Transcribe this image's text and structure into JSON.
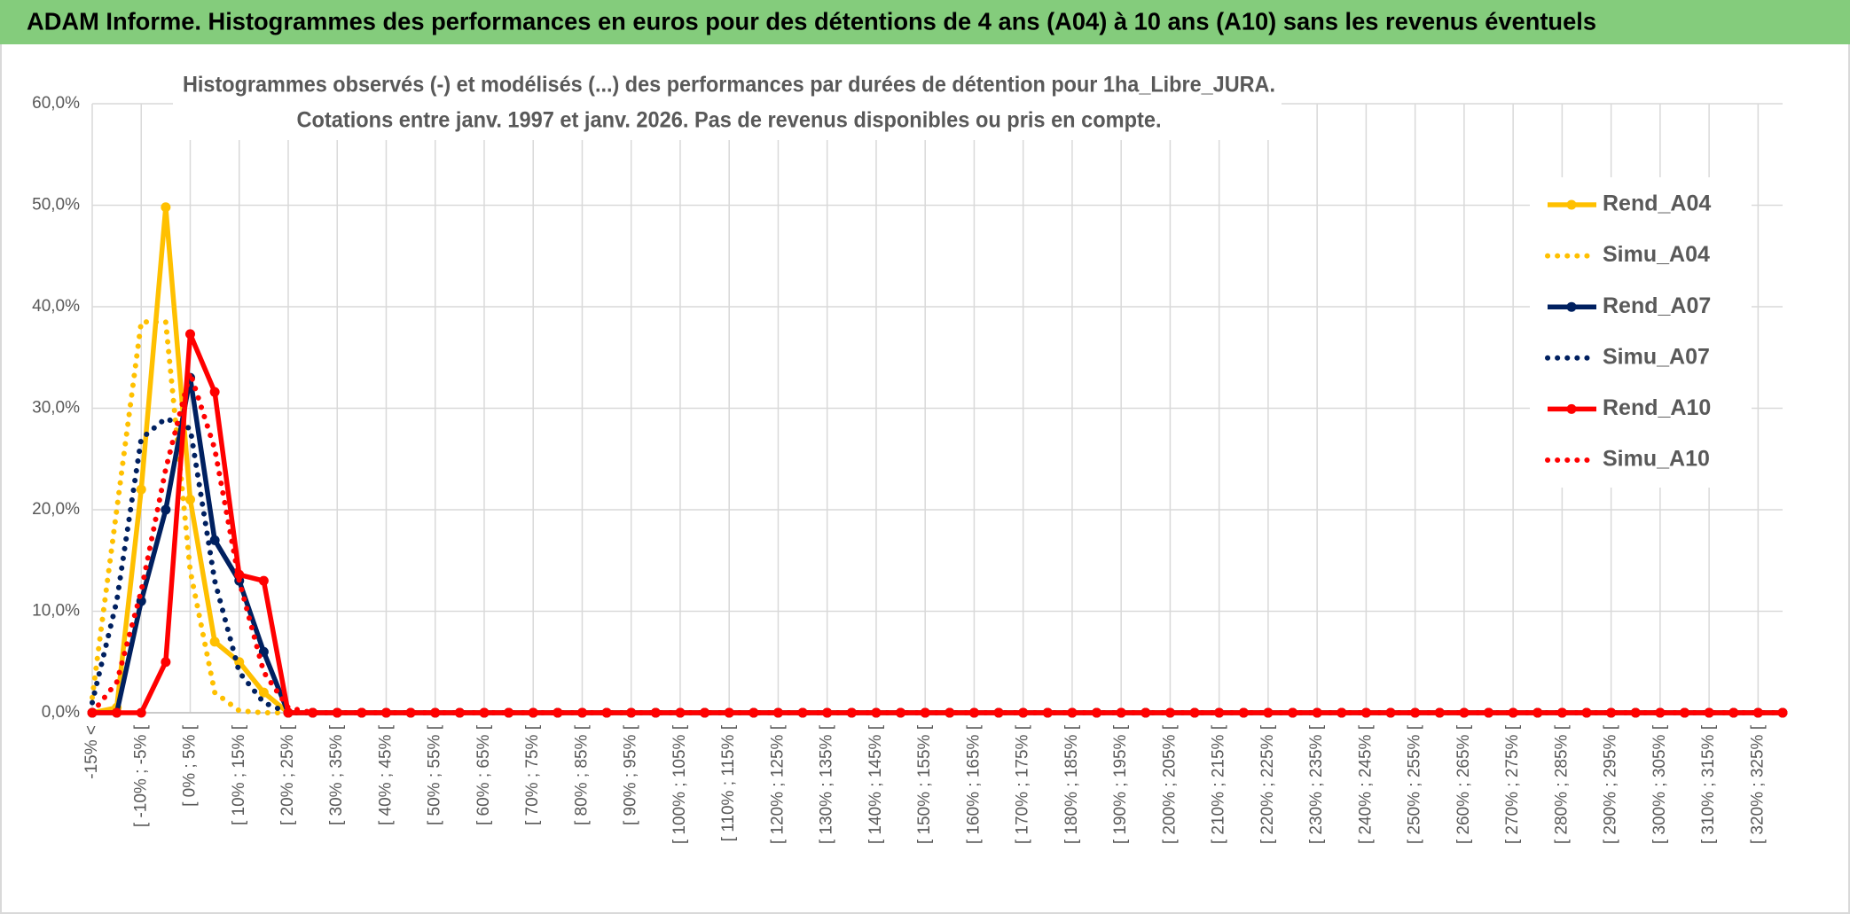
{
  "header": {
    "title": "ADAM Informe. Histogrammes des performances en euros pour des détentions de 4 ans (A04) à 10 ans (A10) sans les revenus éventuels"
  },
  "chart_data": {
    "type": "line",
    "title": "Histogrammes observés (-) et modélisés (...) des performances par durées de détention pour 1ha_Libre_JURA.",
    "subtitle": "Cotations entre janv. 1997 et janv. 2026. Pas de revenus disponibles ou pris en compte.",
    "categories": [
      "-15% <",
      null,
      "[ -10% ; -5% [",
      null,
      "[ 0% ; 5% [",
      null,
      "[ 10% ; 15% [",
      null,
      "[ 20% ; 25% [",
      null,
      "[ 30% ; 35% [",
      null,
      "[ 40% ; 45% [",
      null,
      "[ 50% ; 55% [",
      null,
      "[ 60% ; 65% [",
      null,
      "[ 70% ; 75% [",
      null,
      "[ 80% ; 85% [",
      null,
      "[ 90% ; 95% [",
      null,
      "[ 100% ; 105% [",
      null,
      "[ 110% ; 115% [",
      null,
      "[ 120% ; 125% [",
      null,
      "[ 130% ; 135% [",
      null,
      "[ 140% ; 145% [",
      null,
      "[ 150% ; 155% [",
      null,
      "[ 160% ; 165% [",
      null,
      "[ 170% ; 175% [",
      null,
      "[ 180% ; 185% [",
      null,
      "[ 190% ; 195% [",
      null,
      "[ 200% ; 205% [",
      null,
      "[ 210% ; 215% [",
      null,
      "[ 220% ; 225% [",
      null,
      "[ 230% ; 235% [",
      null,
      "[ 240% ; 245% [",
      null,
      "[ 250% ; 255% [",
      null,
      "[ 260% ; 265% [",
      null,
      "[ 270% ; 275% [",
      null,
      "[ 280% ; 285% [",
      null,
      "[ 290% ; 295% [",
      null,
      "[ 300% ; 305% [",
      null,
      "[ 310% ; 315% [",
      null,
      "[ 320% ; 325% [",
      null
    ],
    "series": [
      {
        "name": "Rend_A04",
        "color": "#FFC000",
        "style": "solid",
        "markers": true,
        "values": [
          0,
          0.5,
          22,
          49.8,
          21,
          7,
          5,
          2,
          0,
          0,
          0,
          0,
          0,
          0,
          0,
          0,
          0,
          0,
          0,
          0,
          0,
          0,
          0,
          0,
          0,
          0,
          0,
          0,
          0,
          0,
          0,
          0,
          0,
          0,
          0,
          0,
          0,
          0,
          0,
          0,
          0,
          0,
          0,
          0,
          0,
          0,
          0,
          0,
          0,
          0,
          0,
          0,
          0,
          0,
          0,
          0,
          0,
          0,
          0,
          0,
          0,
          0,
          0,
          0,
          0,
          0,
          0,
          0,
          0,
          0
        ]
      },
      {
        "name": "Simu_A04",
        "color": "#FFC000",
        "style": "dotted",
        "markers": false,
        "values": [
          1.5,
          20,
          38.5,
          38.5,
          14,
          2,
          0.2,
          0,
          0,
          0,
          0,
          0,
          0,
          0,
          0,
          0,
          0,
          0,
          0,
          0,
          0,
          0,
          0,
          0,
          0,
          0,
          0,
          0,
          0,
          0,
          0,
          0,
          0,
          0,
          0,
          0,
          0,
          0,
          0,
          0,
          0,
          0,
          0,
          0,
          0,
          0,
          0,
          0,
          0,
          0,
          0,
          0,
          0,
          0,
          0,
          0,
          0,
          0,
          0,
          0,
          0,
          0,
          0,
          0,
          0,
          0,
          0,
          0,
          0,
          0
        ]
      },
      {
        "name": "Rend_A07",
        "color": "#002060",
        "style": "solid",
        "markers": true,
        "values": [
          0,
          0,
          11,
          20,
          33,
          17,
          13,
          6,
          0,
          0,
          0,
          0,
          0,
          0,
          0,
          0,
          0,
          0,
          0,
          0,
          0,
          0,
          0,
          0,
          0,
          0,
          0,
          0,
          0,
          0,
          0,
          0,
          0,
          0,
          0,
          0,
          0,
          0,
          0,
          0,
          0,
          0,
          0,
          0,
          0,
          0,
          0,
          0,
          0,
          0,
          0,
          0,
          0,
          0,
          0,
          0,
          0,
          0,
          0,
          0,
          0,
          0,
          0,
          0,
          0,
          0,
          0,
          0,
          0,
          0
        ]
      },
      {
        "name": "Simu_A07",
        "color": "#002060",
        "style": "dotted",
        "markers": false,
        "values": [
          1,
          11,
          27,
          29,
          28,
          13,
          4,
          1,
          0,
          0,
          0,
          0,
          0,
          0,
          0,
          0,
          0,
          0,
          0,
          0,
          0,
          0,
          0,
          0,
          0,
          0,
          0,
          0,
          0,
          0,
          0,
          0,
          0,
          0,
          0,
          0,
          0,
          0,
          0,
          0,
          0,
          0,
          0,
          0,
          0,
          0,
          0,
          0,
          0,
          0,
          0,
          0,
          0,
          0,
          0,
          0,
          0,
          0,
          0,
          0,
          0,
          0,
          0,
          0,
          0,
          0,
          0,
          0,
          0,
          0
        ]
      },
      {
        "name": "Rend_A10",
        "color": "#FF0000",
        "style": "solid",
        "markers": true,
        "values": [
          0,
          0,
          0,
          5,
          37.3,
          31.6,
          13.6,
          13,
          0,
          0,
          0,
          0,
          0,
          0,
          0,
          0,
          0,
          0,
          0,
          0,
          0,
          0,
          0,
          0,
          0,
          0,
          0,
          0,
          0,
          0,
          0,
          0,
          0,
          0,
          0,
          0,
          0,
          0,
          0,
          0,
          0,
          0,
          0,
          0,
          0,
          0,
          0,
          0,
          0,
          0,
          0,
          0,
          0,
          0,
          0,
          0,
          0,
          0,
          0,
          0,
          0,
          0,
          0,
          0,
          0,
          0,
          0,
          0,
          0,
          0
        ]
      },
      {
        "name": "Simu_A10",
        "color": "#FF0000",
        "style": "dotted",
        "markers": false,
        "values": [
          0,
          3,
          12,
          24,
          33.5,
          26,
          13,
          4,
          0.5,
          0,
          0,
          0,
          0,
          0,
          0,
          0,
          0,
          0,
          0,
          0,
          0,
          0,
          0,
          0,
          0,
          0,
          0,
          0,
          0,
          0,
          0,
          0,
          0,
          0,
          0,
          0,
          0,
          0,
          0,
          0,
          0,
          0,
          0,
          0,
          0,
          0,
          0,
          0,
          0,
          0,
          0,
          0,
          0,
          0,
          0,
          0,
          0,
          0,
          0,
          0,
          0,
          0,
          0,
          0,
          0,
          0,
          0,
          0,
          0,
          0
        ]
      }
    ],
    "ylim": [
      0,
      60
    ],
    "yticks": [
      {
        "value": 0,
        "label": "0,0%"
      },
      {
        "value": 10,
        "label": "10,0%"
      },
      {
        "value": 20,
        "label": "20,0%"
      },
      {
        "value": 30,
        "label": "30,0%"
      },
      {
        "value": 40,
        "label": "40,0%"
      },
      {
        "value": 50,
        "label": "50,0%"
      },
      {
        "value": 60,
        "label": "60,0%"
      }
    ],
    "grid": true,
    "legend": "right"
  }
}
